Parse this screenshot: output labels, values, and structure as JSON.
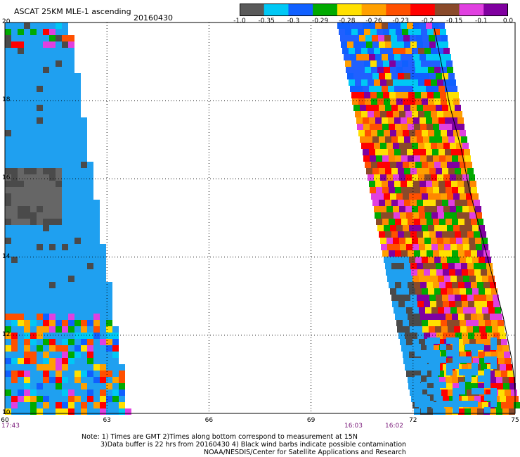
{
  "header": {
    "title": "ASCAT 25KM MLE-1 ascending",
    "date": "20160430"
  },
  "colorbar": {
    "colors": [
      "#5a5a5a",
      "#00c8f5",
      "#1060ff",
      "#00aa00",
      "#ffe000",
      "#ffa000",
      "#ff5000",
      "#ff0000",
      "#8a4a2a",
      "#e040e0",
      "#8000a0"
    ],
    "tick_labels": [
      "-1.0",
      "-0.35",
      "-0.3",
      "-0.29",
      "-0.28",
      "-0.26",
      "-0.23",
      "-0.2",
      "-0.15",
      "-0.1",
      "0.0"
    ]
  },
  "axes": {
    "x_ticks": [
      "60",
      "63",
      "66",
      "69",
      "72",
      "75"
    ],
    "y_ticks": [
      "20",
      "18",
      "16",
      "14",
      "12",
      "10"
    ]
  },
  "pass_times": {
    "left": "17:43",
    "right_a": "16:03",
    "right_b": "16:02"
  },
  "notes": {
    "line1": "Note: 1) Times are GMT 2)Times along bottom correspond to measurement at 15N",
    "line2": "3)Data buffer is 22 hrs from 20160430 4) Black wind barbs indicate possible contamination",
    "line3": "NOAA/NESDIS/Center for Satellite Applications and Research"
  }
}
